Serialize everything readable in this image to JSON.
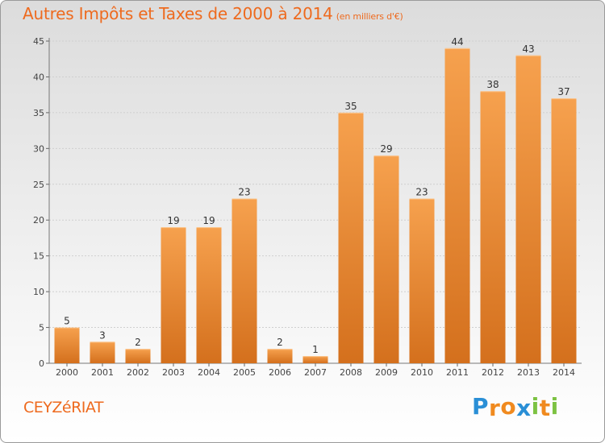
{
  "chart_data": {
    "type": "bar",
    "title": "Autres Impôts et Taxes de 2000 à 2014",
    "unit": "(en milliers d'€)",
    "categories": [
      "2000",
      "2001",
      "2002",
      "2003",
      "2004",
      "2005",
      "2006",
      "2007",
      "2008",
      "2009",
      "2010",
      "2011",
      "2012",
      "2013",
      "2014"
    ],
    "values": [
      5,
      3,
      2,
      19,
      19,
      23,
      2,
      1,
      35,
      29,
      23,
      44,
      38,
      43,
      37
    ],
    "ylim": [
      0,
      45
    ],
    "yticks": [
      0,
      5,
      10,
      15,
      20,
      25,
      30,
      35,
      40,
      45
    ],
    "grid": true,
    "bar_color_top": "#f6a14e",
    "bar_color_bottom": "#d4701d"
  },
  "commune": "CEYZéRIAT",
  "logo": {
    "text": "Proxiti",
    "letters": [
      {
        "char": "P",
        "color": "#2a8fd6"
      },
      {
        "char": "r",
        "color": "#f08a1f"
      },
      {
        "char": "o",
        "color": "#f08a1f"
      },
      {
        "char": "x",
        "color": "#2a8fd6"
      },
      {
        "char": "i",
        "color": "#7cc242"
      },
      {
        "char": "t",
        "color": "#f08a1f"
      },
      {
        "char": "i",
        "color": "#7cc242"
      }
    ]
  }
}
